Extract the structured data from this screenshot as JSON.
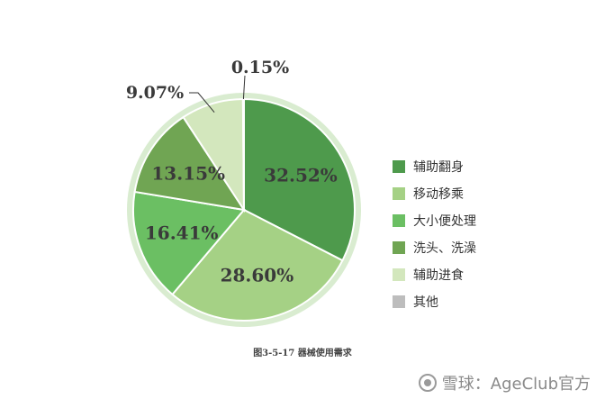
{
  "chart_data": {
    "type": "pie",
    "categories": [
      "辅助翻身",
      "移动移乘",
      "大小便处理",
      "洗头、洗澡",
      "辅助进食",
      "其他"
    ],
    "values": [
      32.52,
      28.6,
      16.41,
      13.15,
      9.07,
      0.15
    ],
    "value_labels": [
      "32.52%",
      "28.60%",
      "16.41%",
      "13.15%",
      "9.07%",
      "0.15%"
    ],
    "colors": [
      "#4e9a4c",
      "#a5d185",
      "#6bbf63",
      "#70a553",
      "#d3e7bd",
      "#bdbdbd"
    ],
    "ring_color": "#d9ecd0",
    "legend_position": "right",
    "start": "top, clockwise"
  },
  "caption": "图3-5-17 器械使用需求",
  "watermark": {
    "text": "雪球：AgeClub官方",
    "icon": "snowball-logo-icon"
  }
}
